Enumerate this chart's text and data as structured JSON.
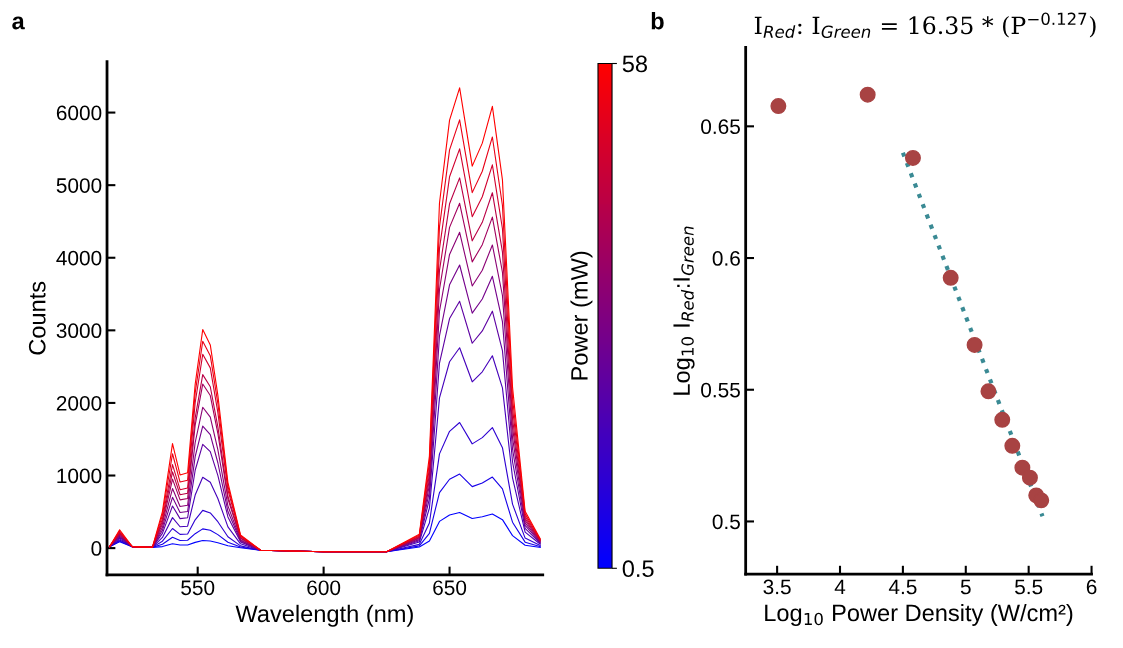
{
  "chart_data": [
    {
      "type": "line",
      "xlabel": "Wavelength (nm)",
      "ylabel": "Counts",
      "clabel": "Power (mW)",
      "clim": [
        0.5,
        58
      ],
      "cticks": [
        0.5,
        58
      ],
      "annotations": [
        "a"
      ],
      "x": [
        515,
        519,
        524,
        532,
        536,
        540,
        543,
        546,
        549,
        552,
        555,
        558,
        562,
        567,
        575,
        600,
        625,
        638,
        642,
        646,
        650,
        654,
        659,
        663,
        667,
        671,
        675,
        680,
        686
      ],
      "xlim": [
        514,
        687
      ],
      "xticks": [
        550,
        600,
        650
      ],
      "ylim": [
        -370,
        6700
      ],
      "yticks": [
        0,
        1000,
        2000,
        3000,
        4000,
        5000,
        6000
      ],
      "marker": "none",
      "line_style": "solid",
      "grid": false,
      "legend": false,
      "series": [
        {
          "color": "#0000ff",
          "values": [
            20,
            87,
            20,
            10,
            21,
            60,
            42,
            43,
            79,
            105,
            98,
            74,
            32,
            6,
            -30,
            -50,
            -50,
            15,
            98,
            368,
            456,
            490,
            407,
            431,
            470,
            392,
            172,
            39,
            10
          ]
        },
        {
          "color": "#1700e8",
          "values": [
            20,
            98,
            20,
            10,
            53,
            150,
            105,
            108,
            199,
            265,
            246,
            186,
            80,
            16,
            -30,
            -50,
            -50,
            31,
            204,
            765,
            949,
            1020,
            847,
            898,
            979,
            816,
            357,
            82,
            20
          ]
        },
        {
          "color": "#2e00d1",
          "values": [
            20,
            112,
            20,
            10,
            95,
            270,
            189,
            194,
            390,
            520,
            484,
            364,
            156,
            31,
            -30,
            -50,
            -50,
            52,
            346,
            1298,
            1609,
            1730,
            1436,
            1522,
            1661,
            1384,
            606,
            138,
            35
          ]
        },
        {
          "color": "#4500ba",
          "values": [
            20,
            130,
            20,
            10,
            147,
            420,
            294,
            302,
            731,
            975,
            907,
            683,
            293,
            59,
            -30,
            -50,
            -50,
            83,
            552,
            2070,
            2567,
            2760,
            2291,
            2429,
            2650,
            2208,
            966,
            221,
            55
          ]
        },
        {
          "color": "#5d00a2",
          "values": [
            20,
            150,
            20,
            10,
            203,
            580,
            406,
            418,
            1073,
            1430,
            1330,
            1001,
            429,
            86,
            -30,
            -50,
            -50,
            102,
            680,
            2550,
            3162,
            3400,
            2822,
            2992,
            3264,
            2720,
            1190,
            272,
            68
          ]
        },
        {
          "color": "#74008b",
          "values": [
            20,
            164,
            20,
            10,
            245,
            700,
            490,
            504,
            1260,
            1680,
            1562,
            1176,
            504,
            101,
            -30,
            -50,
            -50,
            117,
            780,
            2925,
            3627,
            3900,
            3237,
            3432,
            3744,
            3120,
            1365,
            312,
            78
          ]
        },
        {
          "color": "#8b0074",
          "values": [
            20,
            178,
            20,
            10,
            287,
            820,
            574,
            590,
            1455,
            1940,
            1804,
            1358,
            582,
            116,
            -30,
            -50,
            -50,
            131,
            870,
            3263,
            4046,
            4350,
            3611,
            3828,
            4176,
            3480,
            1523,
            348,
            87
          ]
        },
        {
          "color": "#a2005d",
          "values": [
            20,
            194,
            20,
            10,
            333,
            950,
            665,
            684,
            1695,
            2260,
            2102,
            1582,
            678,
            136,
            -30,
            -50,
            -50,
            143,
            950,
            3563,
            4418,
            4750,
            3943,
            4180,
            4560,
            3800,
            1663,
            380,
            95
          ]
        },
        {
          "color": "#ba0045",
          "values": [
            20,
            206,
            20,
            10,
            368,
            1050,
            735,
            756,
            1793,
            2390,
            2223,
            1673,
            717,
            143,
            -30,
            -50,
            -50,
            153,
            1020,
            3825,
            4743,
            5100,
            4233,
            4488,
            4896,
            4080,
            1785,
            408,
            102
          ]
        },
        {
          "color": "#d1002e",
          "values": [
            20,
            218,
            20,
            10,
            403,
            1150,
            805,
            828,
            2003,
            2670,
            2483,
            1869,
            801,
            160,
            -30,
            -50,
            -50,
            165,
            1100,
            4125,
            5115,
            5500,
            4565,
            4840,
            5280,
            4400,
            1925,
            440,
            110
          ]
        },
        {
          "color": "#e80017",
          "values": [
            20,
            236,
            20,
            10,
            455,
            1300,
            910,
            936,
            2138,
            2850,
            2651,
            1995,
            855,
            171,
            -30,
            -50,
            -50,
            177,
            1180,
            4425,
            5487,
            5900,
            4897,
            5192,
            5664,
            4720,
            2065,
            472,
            118
          ]
        },
        {
          "color": "#ff0000",
          "values": [
            20,
            253,
            20,
            10,
            504,
            1440,
            1008,
            1037,
            2258,
            3010,
            2799,
            2107,
            903,
            181,
            -30,
            -50,
            -50,
            190,
            1268,
            4755,
            5896,
            6340,
            5262,
            5579,
            6086,
            5072,
            2219,
            507,
            127
          ]
        }
      ]
    },
    {
      "type": "scatter",
      "title": "I$_{Red}$: I$_{Green}$ = 16.35 * (P$^{−0.127}$)",
      "xlabel": "Log$_{10}$ Power Density (W/cm²)",
      "ylabel": "Log$_{10}$ I$_{Red}$:I$_{Green}$",
      "annotations": [
        "b"
      ],
      "xlim": [
        3.25,
        6
      ],
      "xticks": [
        3.5,
        4,
        4.5,
        5,
        5.5,
        6
      ],
      "ylim": [
        0.48,
        0.68
      ],
      "yticks": [
        0.5,
        0.55,
        0.6,
        0.65
      ],
      "grid": false,
      "legend": false,
      "series": [
        {
          "type": "scatter",
          "color": "#a84343",
          "marker": "circle",
          "x": [
            3.51,
            4.22,
            4.58,
            4.88,
            5.07,
            5.18,
            5.29,
            5.37,
            5.45,
            5.51,
            5.56,
            5.6
          ],
          "values": [
            0.6577,
            0.662,
            0.638,
            0.5925,
            0.567,
            0.5494,
            0.5386,
            0.5287,
            0.5204,
            0.5166,
            0.5099,
            0.508
          ]
        },
        {
          "type": "line",
          "color": "#3a8a94",
          "line_style": "dotted",
          "marker": "none",
          "x": [
            4.5,
            5.61
          ],
          "values": [
            0.64,
            0.502
          ]
        }
      ]
    }
  ]
}
